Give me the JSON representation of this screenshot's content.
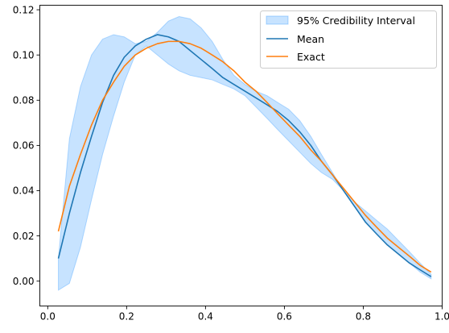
{
  "chart_data": {
    "type": "line",
    "title": "",
    "xlabel": "",
    "ylabel": "",
    "xlim": [
      -0.02,
      1.0
    ],
    "ylim": [
      -0.011,
      0.122
    ],
    "grid": false,
    "legend_placement": "top-right",
    "xticks": [
      0.0,
      0.2,
      0.4,
      0.6,
      0.8,
      1.0
    ],
    "xtick_labels": [
      "0.0",
      "0.2",
      "0.4",
      "0.6",
      "0.8",
      "1.0"
    ],
    "yticks": [
      0.0,
      0.02,
      0.04,
      0.06,
      0.08,
      0.1,
      0.12
    ],
    "ytick_labels": [
      "0.00",
      "0.02",
      "0.04",
      "0.06",
      "0.08",
      "0.10",
      "0.12"
    ],
    "band": {
      "name": "95% Credibility Interval",
      "color": "#1f8fff",
      "x": [
        0.027,
        0.055,
        0.083,
        0.111,
        0.139,
        0.167,
        0.194,
        0.222,
        0.25,
        0.278,
        0.306,
        0.333,
        0.361,
        0.389,
        0.417,
        0.444,
        0.472,
        0.5,
        0.528,
        0.556,
        0.583,
        0.611,
        0.639,
        0.667,
        0.694,
        0.722,
        0.75,
        0.778,
        0.806,
        0.833,
        0.861,
        0.889,
        0.917,
        0.944,
        0.972
      ],
      "lower": [
        -0.004,
        -0.001,
        0.015,
        0.036,
        0.056,
        0.073,
        0.088,
        0.1,
        0.104,
        0.1,
        0.096,
        0.093,
        0.091,
        0.09,
        0.089,
        0.087,
        0.085,
        0.082,
        0.077,
        0.072,
        0.067,
        0.062,
        0.057,
        0.052,
        0.048,
        0.045,
        0.04,
        0.033,
        0.026,
        0.021,
        0.016,
        0.012,
        0.008,
        0.004,
        0.001
      ],
      "upper": [
        0.01,
        0.063,
        0.086,
        0.1,
        0.107,
        0.109,
        0.108,
        0.105,
        0.106,
        0.11,
        0.115,
        0.117,
        0.116,
        0.112,
        0.106,
        0.098,
        0.091,
        0.087,
        0.084,
        0.082,
        0.079,
        0.076,
        0.071,
        0.064,
        0.056,
        0.048,
        0.04,
        0.035,
        0.031,
        0.027,
        0.023,
        0.018,
        0.013,
        0.008,
        0.003
      ]
    },
    "x": [
      0.027,
      0.055,
      0.083,
      0.111,
      0.139,
      0.167,
      0.194,
      0.222,
      0.25,
      0.278,
      0.306,
      0.333,
      0.361,
      0.389,
      0.417,
      0.444,
      0.472,
      0.5,
      0.528,
      0.556,
      0.583,
      0.611,
      0.639,
      0.667,
      0.694,
      0.722,
      0.75,
      0.778,
      0.806,
      0.833,
      0.861,
      0.889,
      0.917,
      0.944,
      0.972
    ],
    "series": [
      {
        "name": "Mean",
        "color": "#1f77b4",
        "values": [
          0.01,
          0.03,
          0.048,
          0.064,
          0.079,
          0.091,
          0.099,
          0.104,
          0.107,
          0.109,
          0.108,
          0.106,
          0.102,
          0.098,
          0.094,
          0.09,
          0.087,
          0.084,
          0.081,
          0.078,
          0.075,
          0.071,
          0.066,
          0.06,
          0.053,
          0.047,
          0.04,
          0.033,
          0.026,
          0.021,
          0.016,
          0.012,
          0.008,
          0.005,
          0.002
        ]
      },
      {
        "name": "Exact",
        "color": "#ff7f0e",
        "values": [
          0.022,
          0.042,
          0.056,
          0.069,
          0.08,
          0.088,
          0.095,
          0.1,
          0.103,
          0.105,
          0.106,
          0.106,
          0.105,
          0.103,
          0.1,
          0.097,
          0.093,
          0.088,
          0.084,
          0.079,
          0.074,
          0.069,
          0.064,
          0.058,
          0.053,
          0.047,
          0.041,
          0.035,
          0.029,
          0.024,
          0.019,
          0.015,
          0.011,
          0.007,
          0.004
        ]
      }
    ]
  }
}
